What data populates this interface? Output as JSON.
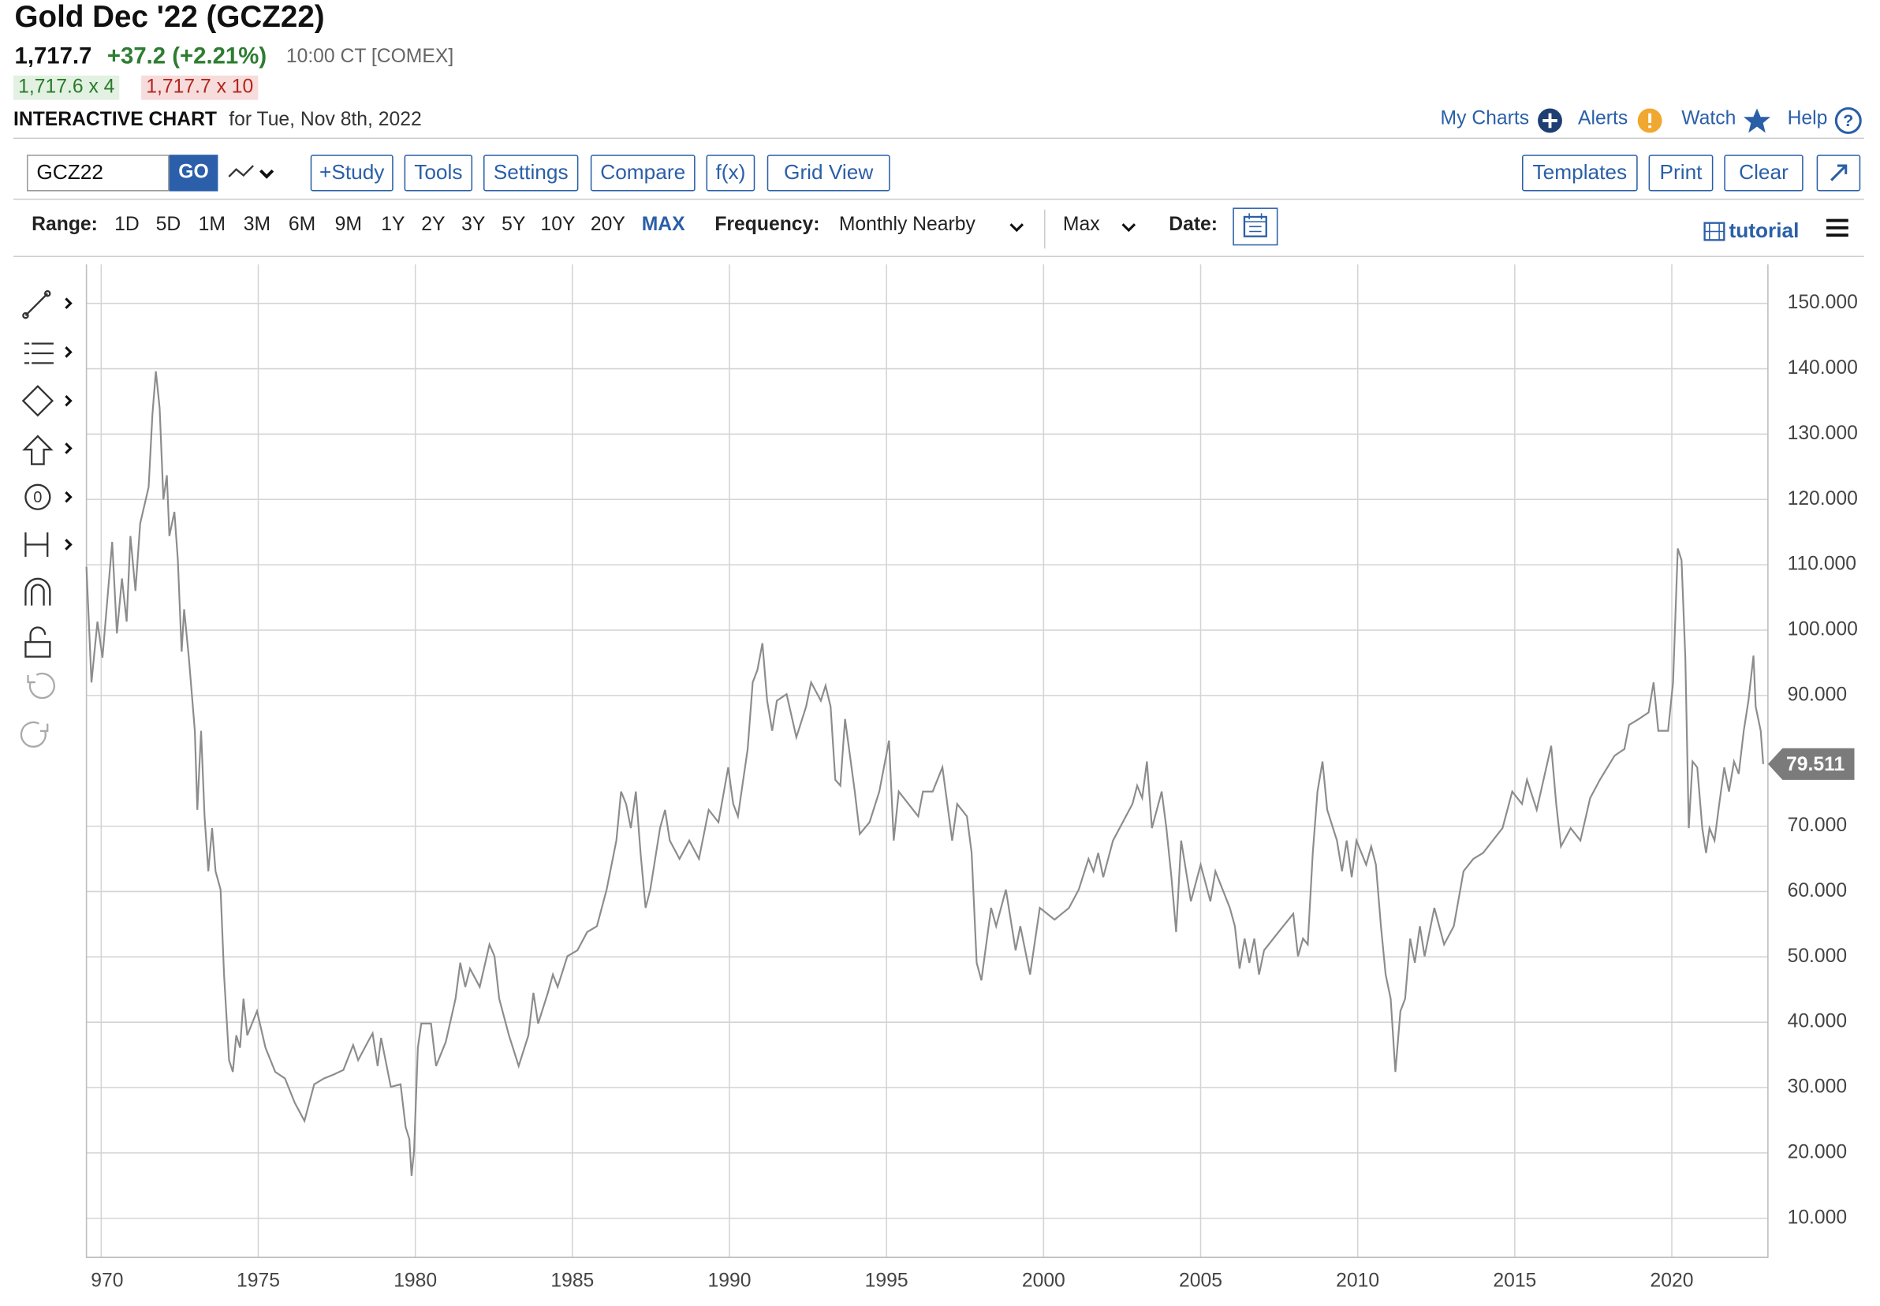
{
  "header": {
    "title": "Gold Dec '22 (GCZ22)",
    "price": "1,717.7",
    "change": "+37.2 (+2.21%)",
    "time": "10:00 CT [COMEX]",
    "bid": "1,717.6 x 4",
    "ask": "1,717.7 x 10",
    "chart_label": "INTERACTIVE CHART",
    "chart_date": "for Tue, Nov 8th, 2022"
  },
  "links": [
    "My Charts",
    "Alerts",
    "Watch",
    "Help"
  ],
  "toolbar": {
    "symbol": "GCZ22",
    "go": "GO",
    "buttons": [
      "+Study",
      "Tools",
      "Settings",
      "Compare",
      "f(x)",
      "Grid View"
    ],
    "right_buttons": [
      "Templates",
      "Print",
      "Clear"
    ]
  },
  "range_bar": {
    "range_label": "Range:",
    "ranges": [
      "1D",
      "5D",
      "1M",
      "3M",
      "6M",
      "9M",
      "1Y",
      "2Y",
      "3Y",
      "5Y",
      "10Y",
      "20Y",
      "MAX"
    ],
    "frequency_label": "Frequency:",
    "frequency": "Monthly Nearby",
    "period": "Max",
    "date_label": "Date:",
    "tutorial": "tutorial"
  },
  "chart_data": {
    "type": "line",
    "color": "#8c8c8c",
    "grid": true,
    "xlim": [
      1969.53,
      2023.06
    ],
    "ylim": [
      4.03,
      155.97
    ],
    "xticks": [
      {
        "value": 1970,
        "label": "970"
      },
      1975,
      1980,
      1985,
      1990,
      1995,
      2000,
      2005,
      2010,
      2015,
      2020
    ],
    "yticks": [
      {
        "value": 150,
        "label": "150.000"
      },
      {
        "value": 140,
        "label": "140.000"
      },
      {
        "value": 130,
        "label": "130.000"
      },
      {
        "value": 120,
        "label": "120.000"
      },
      {
        "value": 110,
        "label": "110.000"
      },
      {
        "value": 100,
        "label": "100.000"
      },
      {
        "value": 90,
        "label": "90.000"
      },
      {
        "value": 70,
        "label": "70.000"
      },
      {
        "value": 60,
        "label": "60.000"
      },
      {
        "value": 50,
        "label": "50.000"
      },
      {
        "value": 40,
        "label": "40.000"
      },
      {
        "value": 30,
        "label": "30.000"
      },
      {
        "value": 20,
        "label": "20.000"
      },
      {
        "value": 10,
        "label": "10.000"
      }
    ],
    "x": [
      1969.53,
      1969.69,
      1969.88,
      1970.04,
      1970.35,
      1970.5,
      1970.66,
      1970.81,
      1970.93,
      1971.09,
      1971.24,
      1971.51,
      1971.63,
      1971.74,
      1971.86,
      1971.98,
      1972.09,
      1972.17,
      1972.33,
      1972.44,
      1972.56,
      1972.64,
      1972.79,
      1972.98,
      1973.06,
      1973.18,
      1973.29,
      1973.41,
      1973.53,
      1973.64,
      1973.8,
      1973.91,
      1974.07,
      1974.19,
      1974.3,
      1974.42,
      1974.53,
      1974.65,
      1974.96,
      1975.23,
      1975.54,
      1975.85,
      1976.16,
      1976.47,
      1976.78,
      1977.09,
      1977.4,
      1977.71,
      1978.02,
      1978.18,
      1978.49,
      1978.64,
      1978.8,
      1978.91,
      1979.22,
      1979.53,
      1979.69,
      1979.81,
      1979.88,
      1979.96,
      1980.08,
      1980.19,
      1980.5,
      1980.66,
      1980.97,
      1981.28,
      1981.43,
      1981.59,
      1981.74,
      1982.05,
      1982.36,
      1982.52,
      1982.67,
      1982.98,
      1983.29,
      1983.6,
      1983.76,
      1983.91,
      1984.22,
      1984.38,
      1984.53,
      1984.84,
      1985.16,
      1985.47,
      1985.78,
      1986.09,
      1986.4,
      1986.55,
      1986.71,
      1986.86,
      1987.02,
      1987.17,
      1987.33,
      1987.48,
      1987.79,
      1987.95,
      1988.1,
      1988.41,
      1988.72,
      1989.03,
      1989.34,
      1989.65,
      1989.96,
      1990.12,
      1990.27,
      1990.58,
      1990.74,
      1990.89,
      1991.05,
      1991.2,
      1991.36,
      1991.51,
      1991.82,
      1992.13,
      1992.44,
      1992.6,
      1992.91,
      1993.06,
      1993.22,
      1993.37,
      1993.53,
      1993.68,
      1993.99,
      1994.15,
      1994.46,
      1994.77,
      1995.08,
      1995.23,
      1995.39,
      1995.7,
      1996.01,
      1996.16,
      1996.47,
      1996.78,
      1997.09,
      1997.25,
      1997.56,
      1997.71,
      1997.87,
      1998.02,
      1998.33,
      1998.49,
      1998.8,
      1999.11,
      1999.26,
      1999.57,
      1999.88,
      2000.35,
      2000.81,
      2001.12,
      2001.43,
      2001.59,
      2001.74,
      2001.9,
      2002.21,
      2002.52,
      2002.83,
      2002.98,
      2003.14,
      2003.29,
      2003.45,
      2003.76,
      2003.91,
      2004.07,
      2004.22,
      2004.38,
      2004.69,
      2005.0,
      2005.31,
      2005.47,
      2005.93,
      2006.09,
      2006.24,
      2006.4,
      2006.55,
      2006.71,
      2006.86,
      2007.02,
      2007.48,
      2007.95,
      2008.1,
      2008.26,
      2008.41,
      2008.57,
      2008.72,
      2008.88,
      2009.03,
      2009.34,
      2009.5,
      2009.65,
      2009.81,
      2009.96,
      2010.27,
      2010.43,
      2010.58,
      2010.74,
      2010.89,
      2011.05,
      2011.2,
      2011.36,
      2011.51,
      2011.67,
      2011.82,
      2011.98,
      2012.13,
      2012.44,
      2012.75,
      2013.06,
      2013.37,
      2013.68,
      2013.99,
      2014.3,
      2014.61,
      2014.92,
      2015.23,
      2015.39,
      2015.7,
      2016.16,
      2016.32,
      2016.47,
      2016.78,
      2017.09,
      2017.4,
      2017.71,
      2018.18,
      2018.49,
      2018.64,
      2018.95,
      2019.26,
      2019.42,
      2019.57,
      2019.88,
      2020.04,
      2020.19,
      2020.31,
      2020.43,
      2020.54,
      2020.66,
      2020.81,
      2020.97,
      2021.09,
      2021.2,
      2021.36,
      2021.51,
      2021.67,
      2021.82,
      2021.98,
      2022.13,
      2022.29,
      2022.44,
      2022.6,
      2022.67,
      2022.83,
      2022.91
    ],
    "values": [
      109.7,
      92.0,
      101.3,
      95.8,
      113.5,
      99.5,
      107.9,
      101.3,
      114.4,
      106.0,
      116.3,
      121.9,
      133.0,
      139.6,
      134.0,
      120.0,
      123.7,
      114.4,
      118.1,
      110.7,
      96.7,
      103.2,
      95.8,
      84.6,
      72.5,
      84.6,
      71.5,
      63.1,
      69.7,
      63.1,
      60.3,
      47.3,
      34.2,
      32.4,
      38.0,
      36.1,
      43.6,
      38.0,
      41.7,
      36.1,
      32.4,
      31.4,
      27.7,
      24.9,
      30.5,
      31.4,
      32.0,
      32.7,
      36.5,
      34.2,
      37.0,
      38.3,
      33.3,
      37.6,
      30.1,
      30.5,
      24.0,
      22.1,
      16.5,
      20.3,
      36.1,
      39.8,
      39.8,
      33.3,
      37.0,
      43.6,
      49.1,
      45.4,
      48.2,
      45.4,
      51.9,
      50.1,
      43.6,
      38.0,
      33.3,
      38.0,
      44.5,
      39.8,
      44.5,
      47.3,
      45.4,
      50.1,
      51.0,
      53.8,
      54.7,
      60.3,
      67.8,
      75.3,
      73.4,
      69.7,
      75.3,
      65.9,
      57.5,
      60.3,
      69.7,
      72.5,
      67.8,
      65.0,
      67.8,
      65.0,
      72.5,
      70.6,
      79.0,
      73.4,
      71.5,
      81.8,
      92.0,
      93.9,
      98.0,
      89.2,
      84.6,
      89.2,
      90.2,
      83.6,
      88.3,
      92.0,
      89.2,
      91.5,
      88.3,
      77.1,
      76.2,
      86.4,
      75.3,
      68.8,
      70.6,
      75.3,
      83.1,
      67.8,
      75.3,
      73.4,
      71.5,
      75.3,
      75.3,
      79.0,
      67.8,
      73.4,
      71.5,
      65.9,
      49.1,
      46.4,
      57.5,
      54.7,
      60.3,
      51.0,
      54.7,
      47.3,
      57.5,
      55.7,
      57.5,
      60.3,
      65.0,
      63.1,
      65.9,
      62.2,
      67.8,
      70.6,
      73.4,
      76.2,
      74.3,
      79.9,
      69.7,
      75.3,
      69.7,
      62.2,
      53.8,
      67.8,
      58.5,
      64.1,
      58.5,
      63.1,
      57.5,
      54.7,
      48.2,
      52.8,
      49.1,
      52.8,
      47.3,
      51.0,
      53.8,
      56.6,
      50.1,
      52.8,
      51.9,
      65.9,
      75.3,
      79.9,
      72.5,
      67.8,
      63.1,
      67.8,
      62.2,
      67.8,
      64.1,
      66.9,
      64.1,
      54.7,
      47.3,
      43.6,
      32.4,
      41.7,
      43.6,
      52.8,
      49.1,
      54.7,
      50.1,
      57.5,
      51.9,
      54.7,
      63.1,
      65.0,
      65.9,
      67.8,
      69.7,
      75.3,
      73.4,
      77.1,
      72.5,
      82.3,
      73.4,
      66.9,
      69.7,
      67.8,
      74.3,
      77.1,
      80.8,
      81.8,
      85.5,
      86.4,
      87.4,
      92.0,
      84.6,
      84.6,
      92.0,
      112.5,
      110.7,
      95.8,
      69.7,
      79.9,
      79.0,
      69.7,
      65.9,
      69.7,
      67.8,
      73.4,
      79.0,
      75.3,
      79.9,
      78.0,
      84.6,
      89.2,
      96.1,
      88.3,
      84.6,
      79.511
    ]
  }
}
